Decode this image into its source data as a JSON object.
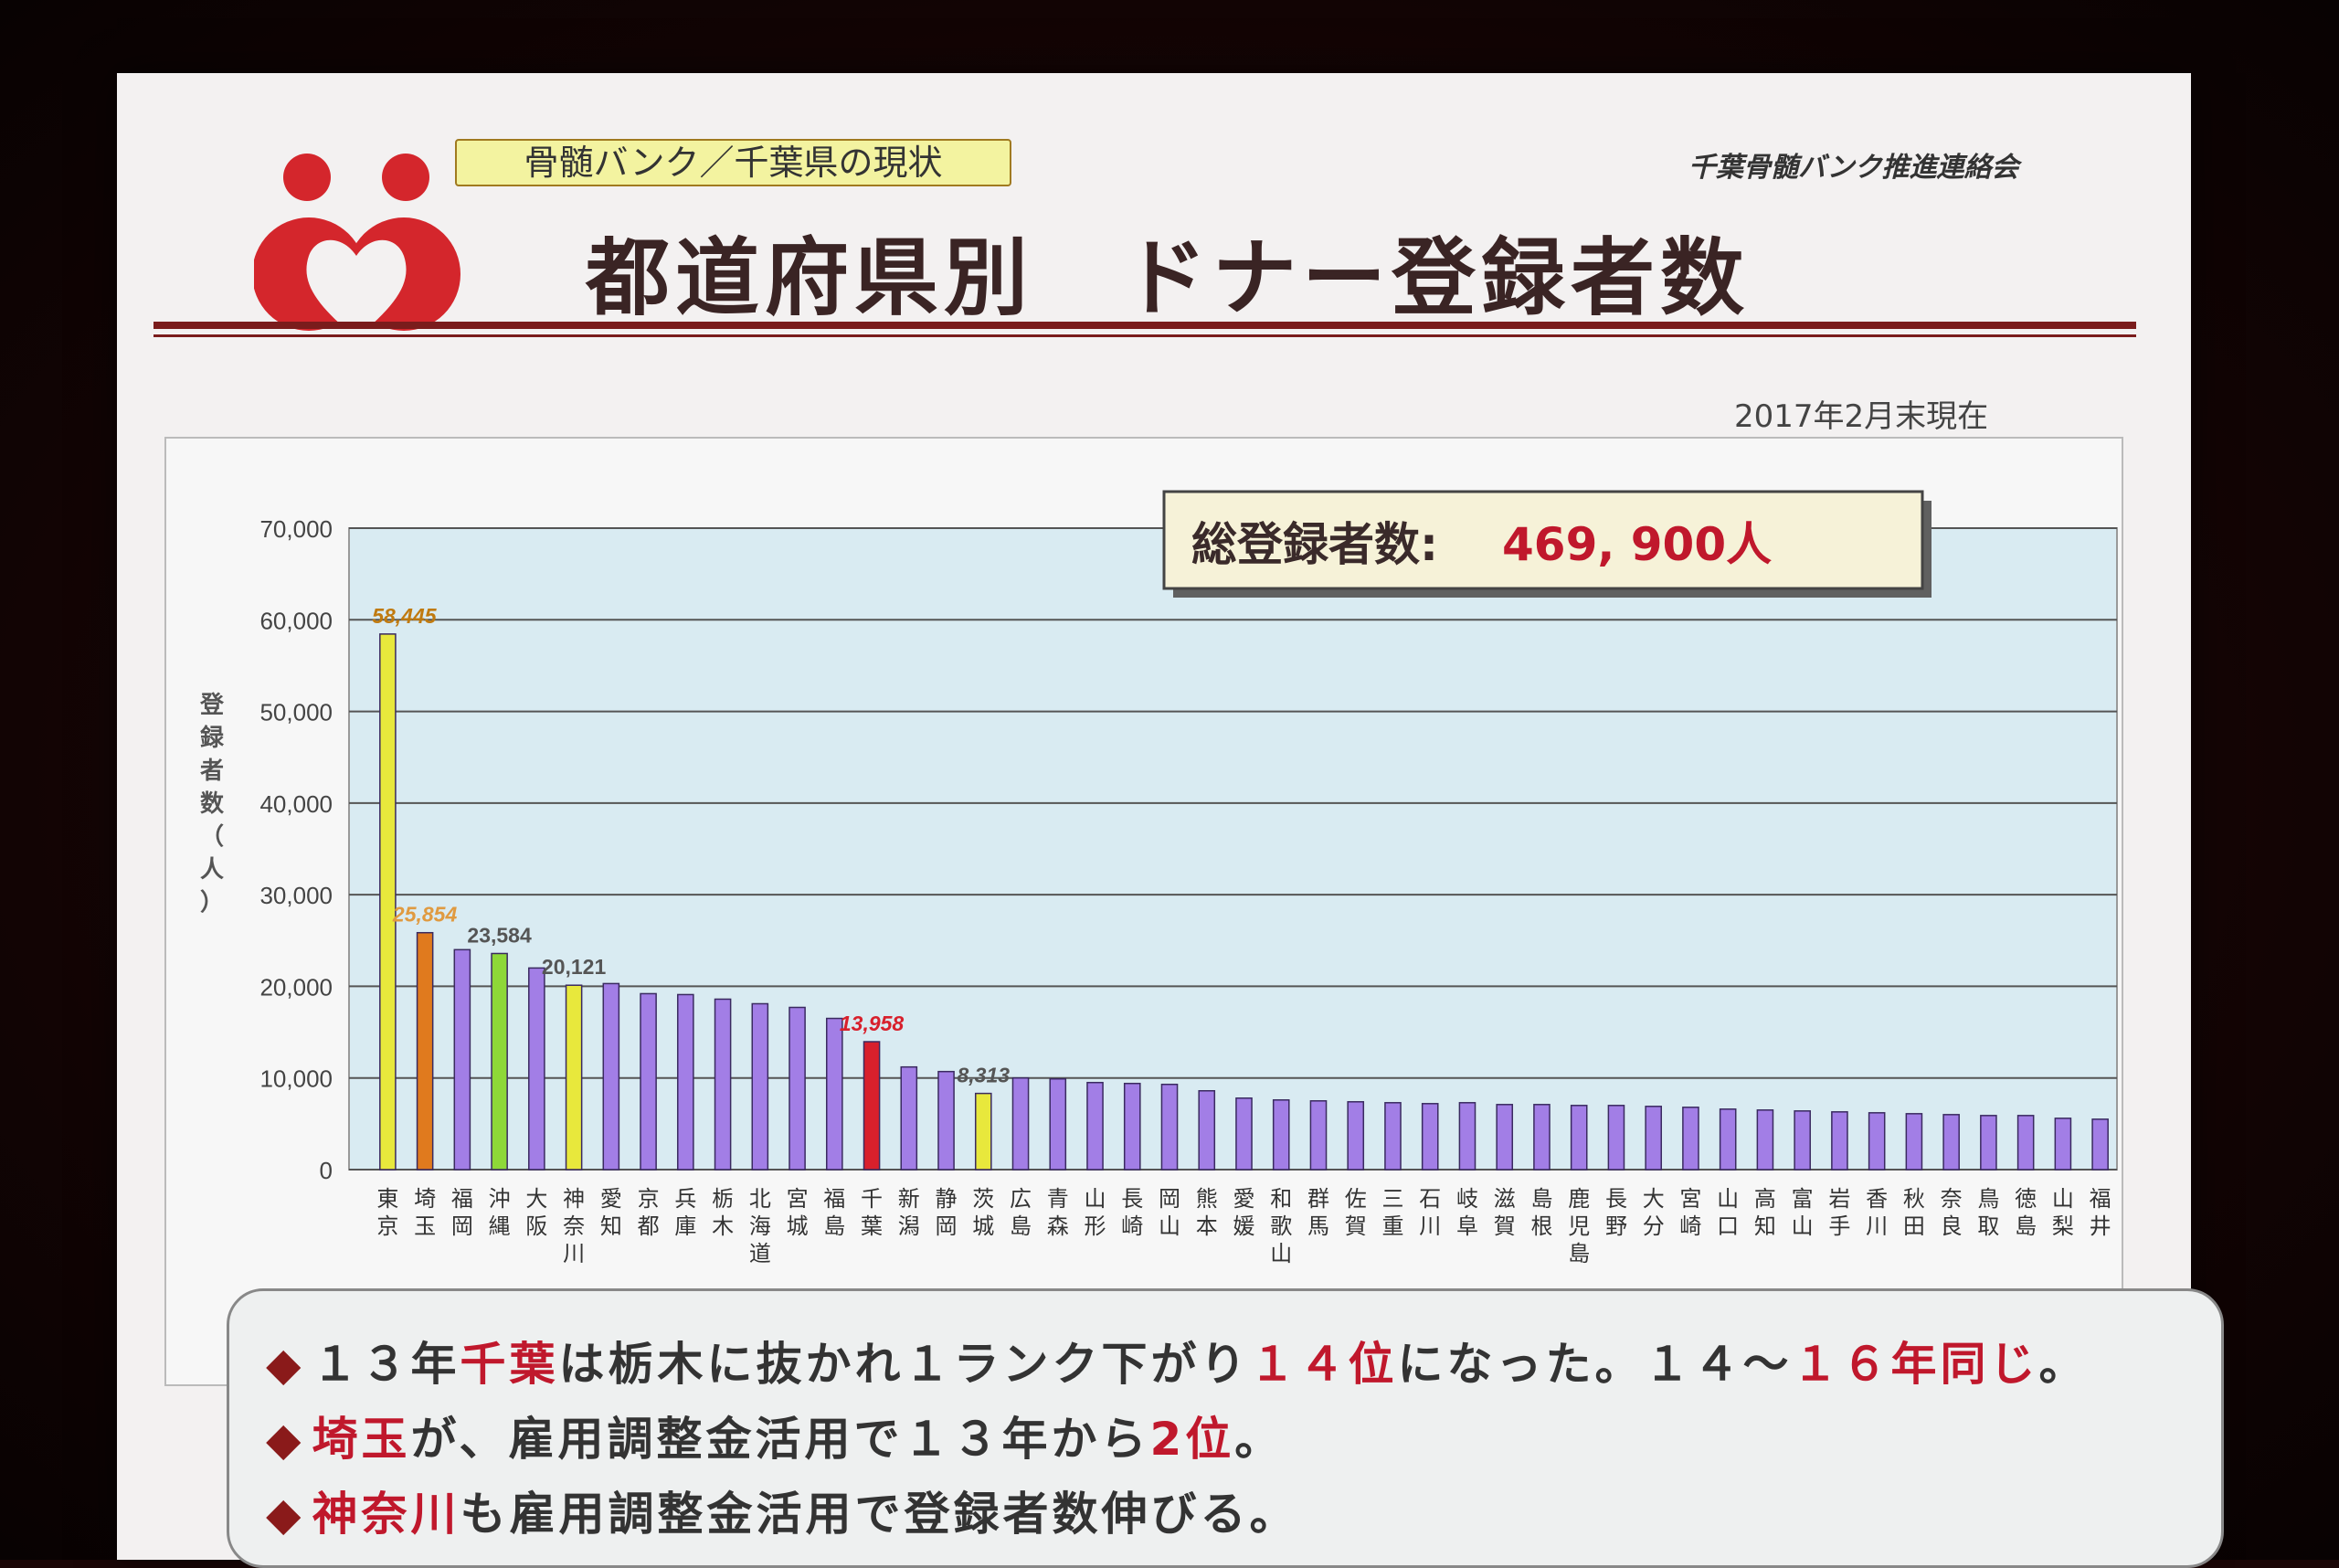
{
  "header": {
    "tag_label": "骨髄バンク／千葉県の現状",
    "organization": "千葉骨髄バンク推進連絡会",
    "title": "都道府県別　ドナー登録者数",
    "as_of": "2017年2月末現在"
  },
  "total_box": {
    "label": "総登録者数:",
    "value": "469, 900人"
  },
  "colors": {
    "default_bar": "#a27ee6",
    "tokyo_bar": "#e8e83c",
    "saitama_bar": "#e07a1e",
    "okinawa_bar": "#8ed838",
    "kanagawa_bar": "#e8e83c",
    "chiba_bar": "#d8202c",
    "ibaraki_bar": "#e8e83c",
    "plot_bg": "#d9ebf2",
    "accent_red": "#c0182c"
  },
  "chart_data": {
    "type": "bar",
    "ylabel": "登録者数（人）",
    "ylim": [
      0,
      70000
    ],
    "yticks": [
      "0",
      "10,000",
      "20,000",
      "30,000",
      "40,000",
      "50,000",
      "60,000",
      "70,000"
    ],
    "categories": [
      "東京",
      "埼玉",
      "福岡",
      "沖縄",
      "大阪",
      "神奈川",
      "愛知",
      "京都",
      "兵庫",
      "栃木",
      "北海道",
      "宮城",
      "福島",
      "千葉",
      "新潟",
      "静岡",
      "茨城",
      "広島",
      "青森",
      "山形",
      "長崎",
      "岡山",
      "熊本",
      "愛媛",
      "和歌山",
      "群馬",
      "佐賀",
      "三重",
      "石川",
      "岐阜",
      "滋賀",
      "島根",
      "鹿児島",
      "長野",
      "大分",
      "宮崎",
      "山口",
      "高知",
      "富山",
      "岩手",
      "香川",
      "秋田",
      "奈良",
      "鳥取",
      "徳島",
      "山梨",
      "福井"
    ],
    "values": [
      58445,
      25854,
      24000,
      23584,
      22000,
      20121,
      20300,
      19200,
      19100,
      18600,
      18100,
      17700,
      16500,
      13958,
      11200,
      10700,
      8313,
      10000,
      9900,
      9500,
      9400,
      9300,
      8600,
      7800,
      7600,
      7500,
      7400,
      7300,
      7200,
      7300,
      7100,
      7100,
      7000,
      7000,
      6900,
      6800,
      6600,
      6500,
      6400,
      6300,
      6200,
      6100,
      6000,
      5900,
      5900,
      5600,
      5500
    ],
    "data_labels": {
      "東京": "58,445",
      "埼玉": "25,854",
      "沖縄": "23,584",
      "神奈川": "20,121",
      "千葉": "13,958",
      "茨城": "8,313"
    }
  },
  "notes": [
    {
      "parts": [
        {
          "t": "１３年",
          "red": false
        },
        {
          "t": "千葉",
          "red": true
        },
        {
          "t": "は栃木に抜かれ１ランク下がり",
          "red": false
        },
        {
          "t": "１４位",
          "red": true
        },
        {
          "t": "になった。１４～",
          "red": false
        },
        {
          "t": "１６年同じ",
          "red": true
        },
        {
          "t": "。",
          "red": false
        }
      ]
    },
    {
      "parts": [
        {
          "t": "埼玉",
          "red": true
        },
        {
          "t": "が、雇用調整金活用で１３年から",
          "red": false
        },
        {
          "t": "2位",
          "red": true
        },
        {
          "t": "。",
          "red": false
        }
      ]
    },
    {
      "parts": [
        {
          "t": "神奈川",
          "red": true
        },
        {
          "t": "も雇用調整金活用で登録者数伸びる。",
          "red": false
        }
      ]
    }
  ]
}
